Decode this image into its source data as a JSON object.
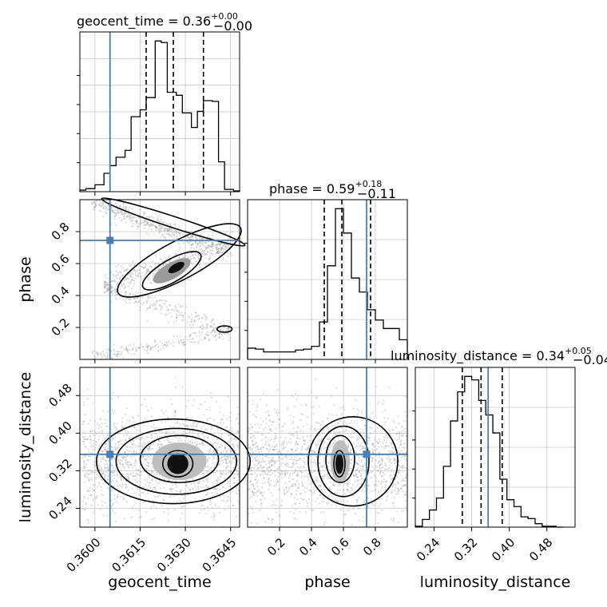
{
  "chart_data": {
    "type": "corner",
    "params": [
      "geocent_time",
      "phase",
      "luminosity_distance"
    ],
    "truths": {
      "geocent_time": 0.3605,
      "phase": 0.745,
      "luminosity_distance": 0.355
    },
    "colors": {
      "truth": "#4a7fb5",
      "hist": "#000000",
      "grid": "#c8c8c8",
      "scatter": "#9a9a9a"
    },
    "grid": true,
    "panels": {
      "geocent_time_hist": {
        "title": {
          "prefix": "geocent_time = 0.36",
          "sup": "+0.00",
          "sub": "−0.00"
        },
        "range": [
          0.3595,
          0.3648
        ],
        "quantiles": [
          0.3617,
          0.3626,
          0.3636
        ],
        "bin_edges": [
          0.3595,
          0.3597,
          0.36,
          0.3603,
          0.3605,
          0.3607,
          0.361,
          0.3612,
          0.3615,
          0.3617,
          0.362,
          0.3622,
          0.3624,
          0.3627,
          0.3629,
          0.3632,
          0.3634,
          0.3636,
          0.3639,
          0.3641,
          0.3643,
          0.3646,
          0.3648
        ],
        "counts": [
          2,
          4,
          9,
          24,
          34,
          45,
          54,
          98,
          107,
          123,
          197,
          195,
          130,
          126,
          103,
          84,
          105,
          119,
          118,
          39,
          3,
          1
        ]
      },
      "phase_hist": {
        "title": {
          "prefix": "phase = 0.59",
          "sup": "+0.18",
          "sub": "−0.11"
        },
        "range": [
          0.0,
          1.0
        ],
        "quantiles": [
          0.48,
          0.59,
          0.77
        ],
        "ticks": [
          "0.2",
          "0.4",
          "0.6",
          "0.8"
        ],
        "xlabel": "phase",
        "bin_edges": [
          0.0,
          0.05,
          0.1,
          0.15,
          0.2,
          0.25,
          0.3,
          0.35,
          0.4,
          0.45,
          0.5,
          0.55,
          0.6,
          0.65,
          0.7,
          0.75,
          0.8,
          0.85,
          0.9,
          0.95,
          1.0
        ],
        "counts": [
          12,
          11,
          8,
          8,
          8,
          8,
          10,
          11,
          14,
          40,
          100,
          161,
          135,
          87,
          72,
          53,
          42,
          33,
          33,
          21
        ]
      },
      "luminosity_distance_hist": {
        "title": {
          "prefix": "luminosity_distance = 0.34",
          "sup": "+0.05",
          "sub": "−0.04"
        },
        "range": [
          0.2,
          0.54
        ],
        "quantiles": [
          0.3,
          0.34,
          0.385
        ],
        "ticks": [
          "0.24",
          "0.32",
          "0.40",
          "0.48"
        ],
        "xlabel": "luminosity_distance",
        "bin_edges": [
          0.2,
          0.215,
          0.23,
          0.245,
          0.26,
          0.275,
          0.29,
          0.305,
          0.32,
          0.335,
          0.35,
          0.365,
          0.38,
          0.395,
          0.41,
          0.425,
          0.44,
          0.455,
          0.47,
          0.485,
          0.5,
          0.515
        ],
        "counts": [
          1,
          9,
          20,
          34,
          71,
          124,
          158,
          176,
          172,
          148,
          131,
          110,
          56,
          32,
          24,
          12,
          10,
          4,
          1,
          1,
          0
        ]
      },
      "geocent_time_vs_phase": {
        "x": "geocent_time",
        "y": "phase",
        "xrange": [
          0.3595,
          0.3648
        ],
        "yrange": [
          0.0,
          1.0
        ],
        "ylabel": "phase",
        "yticks": [
          "0.2",
          "0.4",
          "0.6",
          "0.8"
        ]
      },
      "geocent_time_vs_luminosity_distance": {
        "x": "geocent_time",
        "y": "luminosity_distance",
        "xrange": [
          0.3595,
          0.3648
        ],
        "yrange": [
          0.2,
          0.54
        ],
        "xlabel": "geocent_time",
        "ylabel": "luminosity_distance",
        "xticks": [
          "0.3600",
          "0.3615",
          "0.3630",
          "0.3645"
        ],
        "yticks": [
          "0.24",
          "0.32",
          "0.40",
          "0.48"
        ]
      },
      "phase_vs_luminosity_distance": {
        "x": "phase",
        "y": "luminosity_distance",
        "xrange": [
          0.0,
          1.0
        ],
        "yrange": [
          0.2,
          0.54
        ]
      }
    }
  }
}
